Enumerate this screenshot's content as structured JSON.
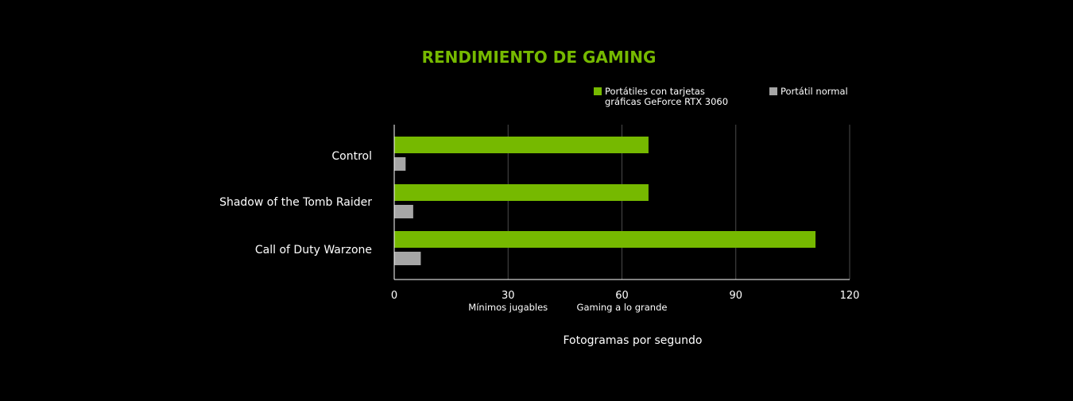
{
  "chart_data": {
    "type": "bar",
    "orientation": "horizontal",
    "title": "RENDIMIENTO DE GAMING",
    "categories": [
      "Control",
      "Shadow of the Tomb Raider",
      "Call of Duty Warzone"
    ],
    "series": [
      {
        "name_lines": [
          "Portátiles con tarjetas",
          "gráficas GeForce RTX 3060"
        ],
        "color": "#76b900",
        "values": [
          67,
          67,
          111
        ]
      },
      {
        "name_lines": [
          "Portátil normal"
        ],
        "color": "#a6a6a6",
        "values": [
          3,
          5,
          7
        ]
      }
    ],
    "xlim": [
      0,
      120
    ],
    "xticks": [
      0,
      30,
      60,
      90,
      120
    ],
    "tick_notes": [
      {
        "value": 30,
        "text": "Mínimos jugables"
      },
      {
        "value": 60,
        "text": "Gaming a lo grande"
      }
    ],
    "xlabel": "Fotogramas por segundo",
    "grid": true,
    "legend_position": "top-right",
    "title_color": "#76b900"
  }
}
